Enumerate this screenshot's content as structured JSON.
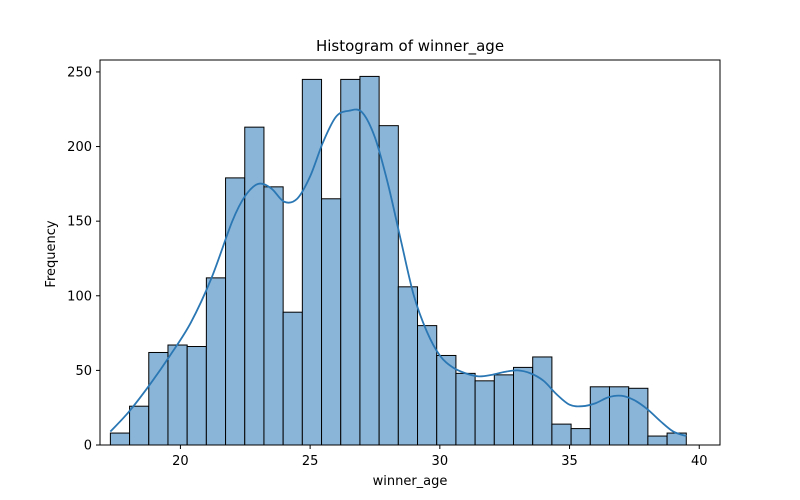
{
  "chart_data": {
    "type": "bar",
    "subtype": "histogram",
    "title": "Histogram of winner_age",
    "xlabel": "winner_age",
    "ylabel": "Frequency",
    "xlim": [
      16.9,
      40.8
    ],
    "ylim": [
      0,
      258
    ],
    "xticks": [
      20,
      25,
      30,
      35,
      40
    ],
    "yticks": [
      0,
      50,
      100,
      150,
      200,
      250
    ],
    "bin_start": 17.3,
    "bin_width": 0.74,
    "values": [
      8,
      26,
      62,
      67,
      66,
      112,
      179,
      213,
      173,
      89,
      245,
      165,
      245,
      247,
      214,
      106,
      80,
      60,
      48,
      43,
      47,
      52,
      59,
      14,
      11,
      39,
      39,
      38,
      6,
      8
    ],
    "kde": {
      "x": [
        17.3,
        18.0,
        18.8,
        19.6,
        20.4,
        21.2,
        22.0,
        22.5,
        23.0,
        23.5,
        24.0,
        24.5,
        25.0,
        25.5,
        26.0,
        26.5,
        27.0,
        27.5,
        28.0,
        28.5,
        29.0,
        29.5,
        30.0,
        30.5,
        31.0,
        31.5,
        32.0,
        32.5,
        33.0,
        33.5,
        34.0,
        34.5,
        35.0,
        35.5,
        36.0,
        36.5,
        37.0,
        37.5,
        38.0,
        38.5,
        39.0,
        39.5
      ],
      "y": [
        9,
        22,
        40,
        60,
        82,
        112,
        150,
        167,
        175,
        172,
        163,
        165,
        180,
        203,
        220,
        224,
        223,
        206,
        175,
        137,
        100,
        76,
        60,
        52,
        48,
        46,
        47,
        49,
        50,
        48,
        43,
        34,
        27,
        26,
        28,
        32,
        33,
        30,
        24,
        16,
        9,
        6
      ]
    },
    "bar_fill": "#8ab5d8",
    "bar_edge": "#000000",
    "line_color": "#2a77b4",
    "grid": false
  }
}
